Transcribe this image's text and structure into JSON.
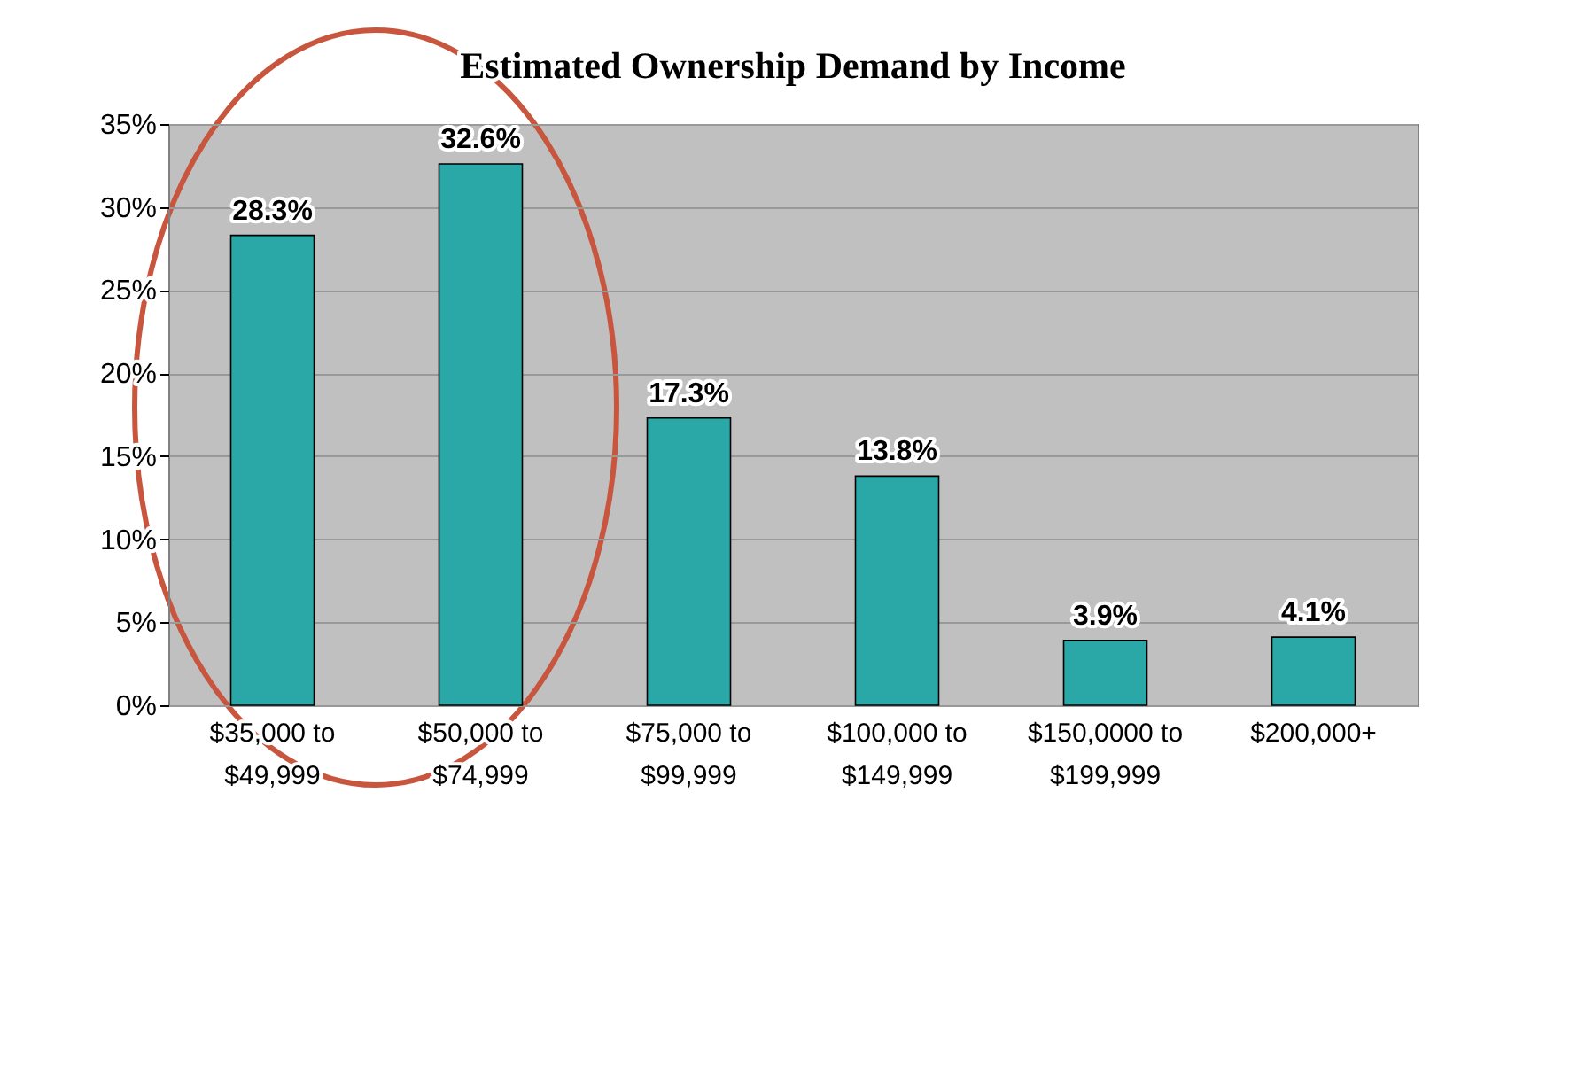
{
  "chart_data": {
    "type": "bar",
    "title": "Estimated Ownership Demand by Income",
    "categories": [
      "$35,000 to $49,999",
      "$50,000 to $74,999",
      "$75,000 to $99,999",
      "$100,000  to $149,999",
      "$150,0000 to $199,999",
      "$200,000+"
    ],
    "values": [
      28.3,
      32.6,
      17.3,
      13.8,
      3.9,
      4.1
    ],
    "value_labels": [
      "28.3%",
      "32.6%",
      "17.3%",
      "13.8%",
      "3.9%",
      "4.1%"
    ],
    "color": "#2aa8a8",
    "ylim": [
      0,
      35
    ],
    "yticks": [
      {
        "value": 0,
        "label": "0%"
      },
      {
        "value": 5,
        "label": "5%"
      },
      {
        "value": 10,
        "label": "10%"
      },
      {
        "value": 15,
        "label": "15%"
      },
      {
        "value": 20,
        "label": "20%"
      },
      {
        "value": 25,
        "label": "25%"
      },
      {
        "value": 30,
        "label": "30%"
      },
      {
        "value": 35,
        "label": "35%"
      }
    ],
    "grid": "y"
  }
}
